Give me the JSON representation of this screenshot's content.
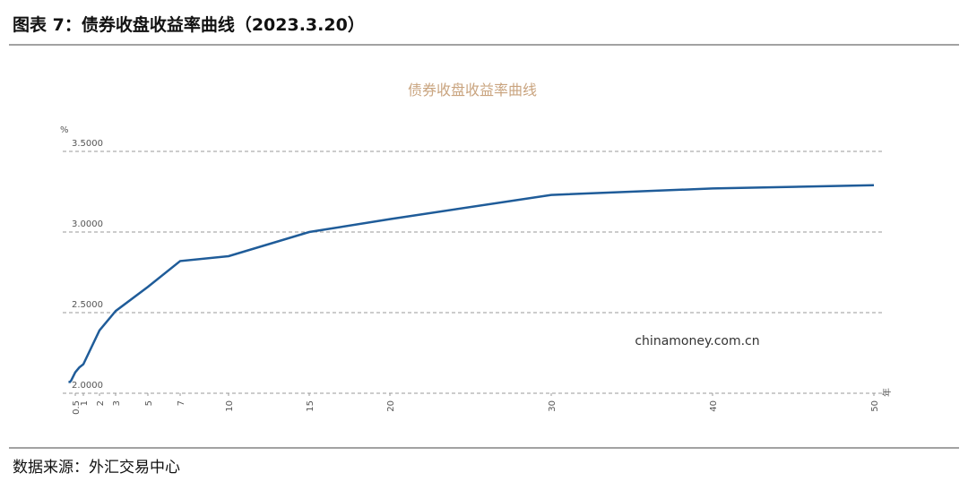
{
  "header": "图表 7：债券收盘收益率曲线（2023.3.20）",
  "source": "数据来源：外汇交易中心",
  "chart_data": {
    "type": "line",
    "title": "债券收盘收益率曲线",
    "y_label": "%",
    "x_label": "年",
    "annotation": "chinamoney.com.cn",
    "x": [
      0.08,
      0.17,
      0.25,
      0.5,
      0.75,
      1,
      2,
      3,
      5,
      7,
      10,
      15,
      20,
      30,
      40,
      50
    ],
    "series": [
      {
        "name": "债券收盘收益率",
        "color": "#1f5c99",
        "values": [
          2.07,
          2.07,
          2.08,
          2.13,
          2.16,
          2.18,
          2.39,
          2.51,
          2.66,
          2.82,
          2.85,
          3.0,
          3.08,
          3.23,
          3.27,
          3.29
        ]
      }
    ],
    "xlim": [
      0,
      50
    ],
    "xticks": [
      0.5,
      1,
      2,
      3,
      5,
      7,
      10,
      15,
      20,
      30,
      40,
      50
    ],
    "ylim": [
      2.0,
      3.5
    ],
    "yticks": [
      {
        "value": 2.0,
        "label": "2.0000"
      },
      {
        "value": 2.5,
        "label": "2.5000"
      },
      {
        "value": 3.0,
        "label": "3.0000"
      },
      {
        "value": 3.5,
        "label": "3.5000"
      }
    ],
    "grid": true
  }
}
